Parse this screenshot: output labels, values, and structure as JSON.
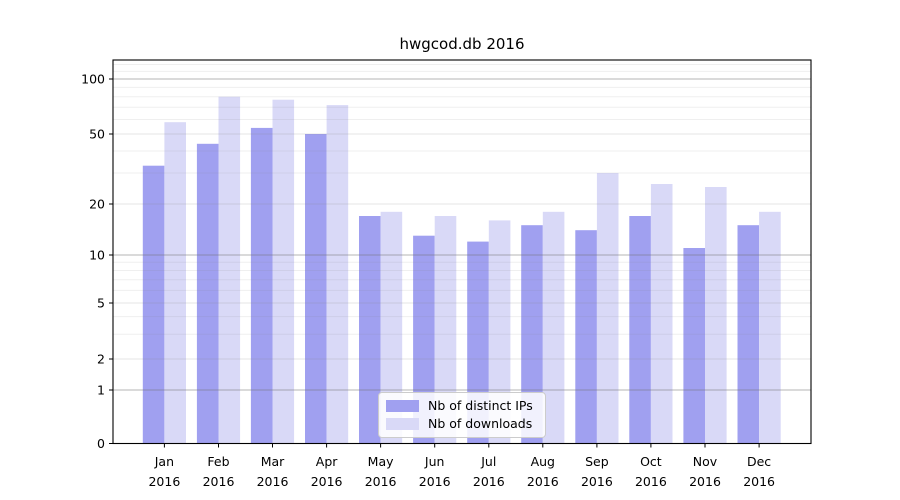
{
  "title": "hwgcod.db 2016",
  "chart_data": {
    "type": "bar",
    "categories": [
      "Jan",
      "Feb",
      "Mar",
      "Apr",
      "May",
      "Jun",
      "Jul",
      "Aug",
      "Sep",
      "Oct",
      "Nov",
      "Dec"
    ],
    "category_year": "2016",
    "series": [
      {
        "name": "Nb of distinct IPs",
        "color": "#a0a0f0",
        "values": [
          33,
          44,
          54,
          50,
          17,
          13,
          12,
          15,
          14,
          17,
          11,
          15
        ]
      },
      {
        "name": "Nb of downloads",
        "color": "#d9d9f7",
        "values": [
          58,
          80,
          77,
          72,
          18,
          17,
          16,
          18,
          30,
          26,
          25,
          18
        ]
      }
    ],
    "title": "hwgcod.db 2016",
    "xlabel": "",
    "ylabel": "",
    "y_scale": "symlog",
    "y_ticks": [
      0,
      1,
      2,
      5,
      10,
      20,
      50,
      100
    ],
    "y_minor_ticks": [
      3,
      4,
      6,
      7,
      8,
      9,
      30,
      40,
      60,
      70,
      80,
      90,
      110,
      120
    ],
    "ylim": [
      0,
      128
    ],
    "grid": "on",
    "legend_position": "bottom-center"
  }
}
